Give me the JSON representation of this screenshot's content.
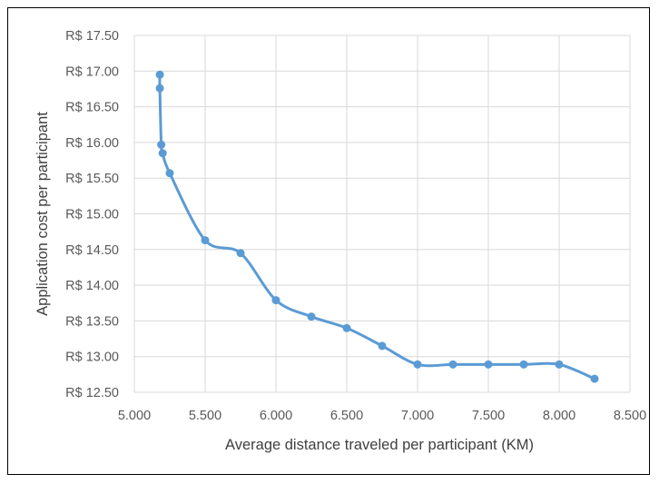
{
  "chart_data": {
    "type": "line",
    "title": "",
    "xlabel": "Average distance traveled per participant (KM)",
    "ylabel": "Application cost per participant",
    "xlim": [
      5.0,
      8.5
    ],
    "ylim": [
      12.5,
      17.5
    ],
    "x_ticks": [
      5.0,
      5.5,
      6.0,
      6.5,
      7.0,
      7.5,
      8.0,
      8.5
    ],
    "x_tick_labels": [
      "5.000",
      "5.500",
      "6.000",
      "6.500",
      "7.000",
      "7.500",
      "8.000",
      "8.500"
    ],
    "y_ticks": [
      12.5,
      13.0,
      13.5,
      14.0,
      14.5,
      15.0,
      15.5,
      16.0,
      16.5,
      17.0,
      17.5
    ],
    "y_tick_labels": [
      "R$ 12.50",
      "R$ 13.00",
      "R$ 13.50",
      "R$ 14.00",
      "R$ 14.50",
      "R$ 15.00",
      "R$ 15.50",
      "R$ 16.00",
      "R$ 16.50",
      "R$ 17.00",
      "R$ 17.50"
    ],
    "grid": true,
    "legend": "none",
    "smooth": true,
    "series": [
      {
        "color": "#5b9bd5",
        "points": [
          {
            "x": 5.18,
            "y": 16.95
          },
          {
            "x": 5.18,
            "y": 16.76
          },
          {
            "x": 5.19,
            "y": 15.97
          },
          {
            "x": 5.2,
            "y": 15.85
          },
          {
            "x": 5.25,
            "y": 15.57
          },
          {
            "x": 5.5,
            "y": 14.63
          },
          {
            "x": 5.75,
            "y": 14.45
          },
          {
            "x": 6.0,
            "y": 13.79
          },
          {
            "x": 6.25,
            "y": 13.56
          },
          {
            "x": 6.5,
            "y": 13.4
          },
          {
            "x": 6.75,
            "y": 13.15
          },
          {
            "x": 7.0,
            "y": 12.89
          },
          {
            "x": 7.25,
            "y": 12.89
          },
          {
            "x": 7.5,
            "y": 12.89
          },
          {
            "x": 7.75,
            "y": 12.89
          },
          {
            "x": 8.0,
            "y": 12.89
          },
          {
            "x": 8.25,
            "y": 12.69
          }
        ]
      }
    ]
  }
}
